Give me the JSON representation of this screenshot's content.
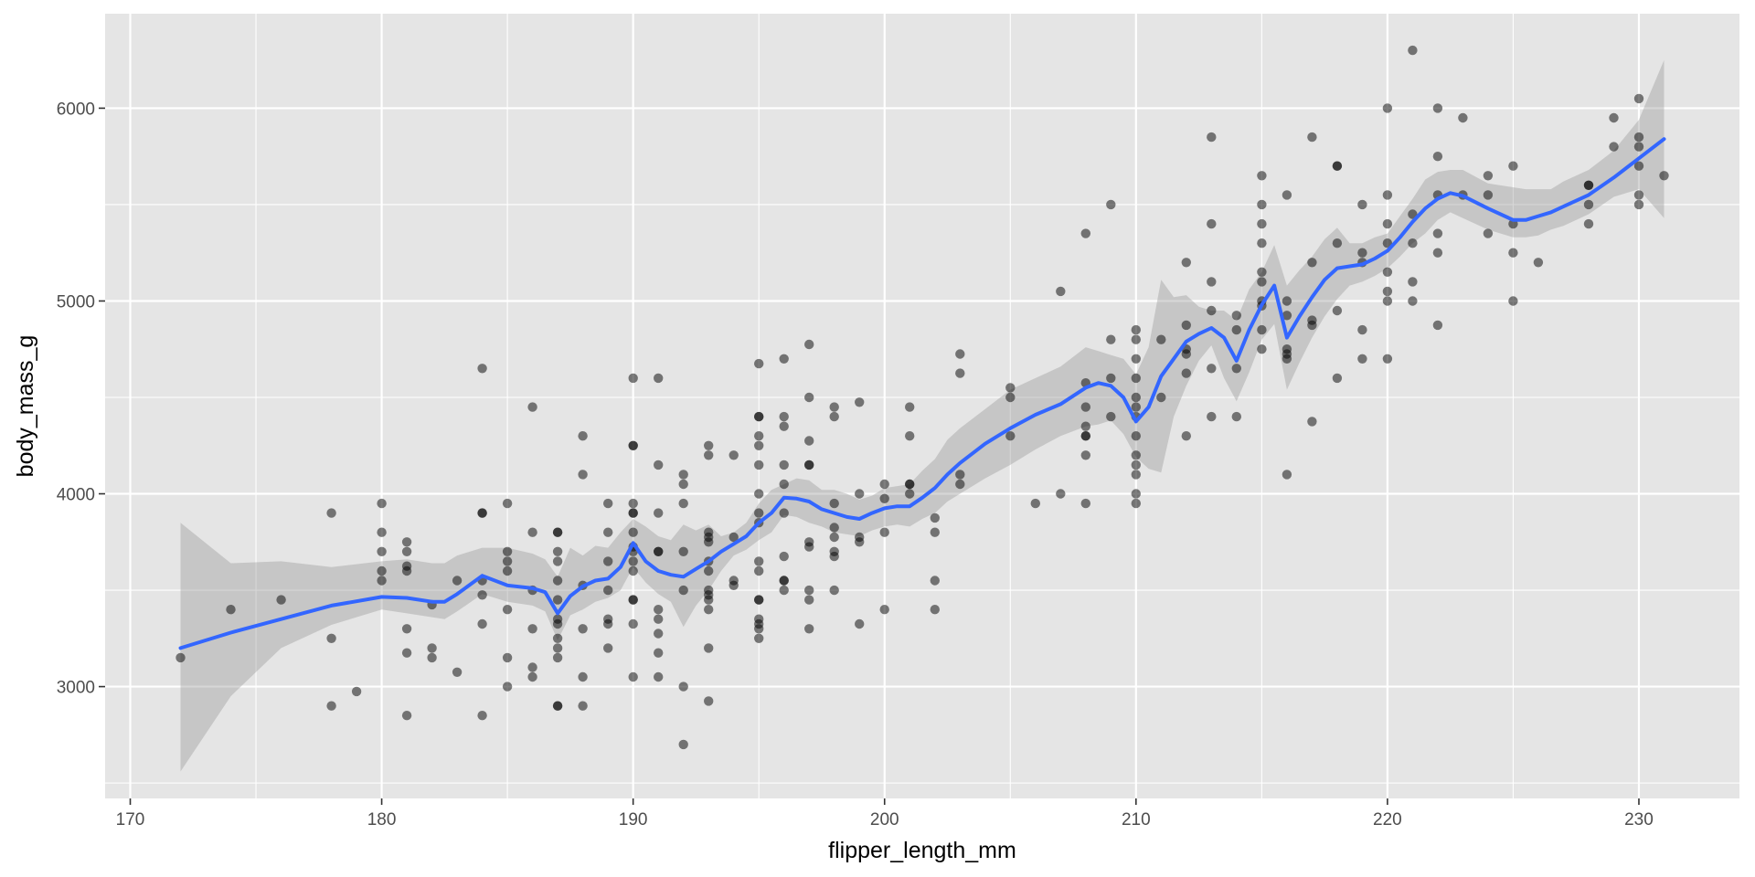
{
  "chart_data": {
    "type": "scatter",
    "title": "",
    "xlabel": "flipper_length_mm",
    "ylabel": "body_mass_g",
    "xlim": [
      169,
      234
    ],
    "ylim": [
      2420,
      6490
    ],
    "x_ticks": [
      170,
      180,
      190,
      200,
      210,
      220,
      230
    ],
    "y_ticks": [
      3000,
      4000,
      5000,
      6000
    ],
    "grid": true,
    "legend": "none",
    "colors": {
      "panel": "#e5e5e5",
      "grid": "#ffffff",
      "points": "#000000",
      "smooth_line": "#3366ff",
      "ribbon": "#b3b3b3"
    },
    "points": [
      [
        172,
        3150
      ],
      [
        174,
        3400
      ],
      [
        176,
        3450
      ],
      [
        178,
        3250
      ],
      [
        178,
        3900
      ],
      [
        178,
        2900
      ],
      [
        179,
        2975
      ],
      [
        180,
        3950
      ],
      [
        180,
        3800
      ],
      [
        180,
        3700
      ],
      [
        180,
        3550
      ],
      [
        180,
        3600
      ],
      [
        181,
        3750
      ],
      [
        181,
        3700
      ],
      [
        181,
        3625
      ],
      [
        181,
        3600
      ],
      [
        181,
        3300
      ],
      [
        181,
        3175
      ],
      [
        181,
        2850
      ],
      [
        182,
        3425
      ],
      [
        182,
        3200
      ],
      [
        182,
        3150
      ],
      [
        183,
        3550
      ],
      [
        183,
        3075
      ],
      [
        184,
        4650
      ],
      [
        184,
        3900
      ],
      [
        184,
        3900
      ],
      [
        184,
        3550
      ],
      [
        184,
        3475
      ],
      [
        184,
        3325
      ],
      [
        184,
        2850
      ],
      [
        185,
        3950
      ],
      [
        185,
        3700
      ],
      [
        185,
        3650
      ],
      [
        185,
        3600
      ],
      [
        185,
        3400
      ],
      [
        185,
        3150
      ],
      [
        185,
        3000
      ],
      [
        186,
        4450
      ],
      [
        186,
        3800
      ],
      [
        186,
        3500
      ],
      [
        186,
        3300
      ],
      [
        186,
        3100
      ],
      [
        186,
        3050
      ],
      [
        187,
        3800
      ],
      [
        187,
        3800
      ],
      [
        187,
        3700
      ],
      [
        187,
        3650
      ],
      [
        187,
        3550
      ],
      [
        187,
        3450
      ],
      [
        187,
        3350
      ],
      [
        187,
        3325
      ],
      [
        187,
        3250
      ],
      [
        187,
        3200
      ],
      [
        187,
        3150
      ],
      [
        187,
        2900
      ],
      [
        187,
        2900
      ],
      [
        188,
        4300
      ],
      [
        188,
        4100
      ],
      [
        188,
        3525
      ],
      [
        188,
        3300
      ],
      [
        188,
        3050
      ],
      [
        188,
        2900
      ],
      [
        189,
        3950
      ],
      [
        189,
        3800
      ],
      [
        189,
        3650
      ],
      [
        189,
        3500
      ],
      [
        189,
        3350
      ],
      [
        189,
        3325
      ],
      [
        189,
        3200
      ],
      [
        190,
        4600
      ],
      [
        190,
        4250
      ],
      [
        190,
        4250
      ],
      [
        190,
        3950
      ],
      [
        190,
        3900
      ],
      [
        190,
        3900
      ],
      [
        190,
        3800
      ],
      [
        190,
        3725
      ],
      [
        190,
        3700
      ],
      [
        190,
        3650
      ],
      [
        190,
        3600
      ],
      [
        190,
        3450
      ],
      [
        190,
        3450
      ],
      [
        190,
        3325
      ],
      [
        190,
        3050
      ],
      [
        191,
        4600
      ],
      [
        191,
        4150
      ],
      [
        191,
        3900
      ],
      [
        191,
        3700
      ],
      [
        191,
        3700
      ],
      [
        191,
        3400
      ],
      [
        191,
        3350
      ],
      [
        191,
        3275
      ],
      [
        191,
        3175
      ],
      [
        191,
        3050
      ],
      [
        192,
        4100
      ],
      [
        192,
        4050
      ],
      [
        192,
        3950
      ],
      [
        192,
        3700
      ],
      [
        192,
        3500
      ],
      [
        192,
        3000
      ],
      [
        192,
        2700
      ],
      [
        193,
        4250
      ],
      [
        193,
        4200
      ],
      [
        193,
        3800
      ],
      [
        193,
        3775
      ],
      [
        193,
        3750
      ],
      [
        193,
        3650
      ],
      [
        193,
        3600
      ],
      [
        193,
        3500
      ],
      [
        193,
        3475
      ],
      [
        193,
        3450
      ],
      [
        193,
        3400
      ],
      [
        193,
        3200
      ],
      [
        193,
        2925
      ],
      [
        194,
        4200
      ],
      [
        194,
        3775
      ],
      [
        194,
        3550
      ],
      [
        194,
        3525
      ],
      [
        195,
        4675
      ],
      [
        195,
        4400
      ],
      [
        195,
        4400
      ],
      [
        195,
        4300
      ],
      [
        195,
        4250
      ],
      [
        195,
        4150
      ],
      [
        195,
        4000
      ],
      [
        195,
        3900
      ],
      [
        195,
        3850
      ],
      [
        195,
        3650
      ],
      [
        195,
        3600
      ],
      [
        195,
        3450
      ],
      [
        195,
        3450
      ],
      [
        195,
        3350
      ],
      [
        195,
        3325
      ],
      [
        195,
        3300
      ],
      [
        195,
        3250
      ],
      [
        196,
        4700
      ],
      [
        196,
        4400
      ],
      [
        196,
        4350
      ],
      [
        196,
        4150
      ],
      [
        196,
        4050
      ],
      [
        196,
        3900
      ],
      [
        196,
        3675
      ],
      [
        196,
        3550
      ],
      [
        196,
        3550
      ],
      [
        196,
        3500
      ],
      [
        197,
        4775
      ],
      [
        197,
        4500
      ],
      [
        197,
        4275
      ],
      [
        197,
        4150
      ],
      [
        197,
        4150
      ],
      [
        197,
        3750
      ],
      [
        197,
        3725
      ],
      [
        197,
        3500
      ],
      [
        197,
        3450
      ],
      [
        197,
        3300
      ],
      [
        198,
        4450
      ],
      [
        198,
        4400
      ],
      [
        198,
        3950
      ],
      [
        198,
        3825
      ],
      [
        198,
        3775
      ],
      [
        198,
        3700
      ],
      [
        198,
        3675
      ],
      [
        198,
        3500
      ],
      [
        199,
        4475
      ],
      [
        199,
        4000
      ],
      [
        199,
        3775
      ],
      [
        199,
        3750
      ],
      [
        199,
        3325
      ],
      [
        200,
        4050
      ],
      [
        200,
        3975
      ],
      [
        200,
        3800
      ],
      [
        200,
        3400
      ],
      [
        201,
        4450
      ],
      [
        201,
        4300
      ],
      [
        201,
        4050
      ],
      [
        201,
        4000
      ],
      [
        201,
        4050
      ],
      [
        202,
        3875
      ],
      [
        202,
        3800
      ],
      [
        202,
        3550
      ],
      [
        202,
        3400
      ],
      [
        203,
        4725
      ],
      [
        203,
        4625
      ],
      [
        203,
        4100
      ],
      [
        203,
        4050
      ],
      [
        205,
        4550
      ],
      [
        205,
        4500
      ],
      [
        205,
        4300
      ],
      [
        206,
        3950
      ],
      [
        207,
        5050
      ],
      [
        207,
        4000
      ],
      [
        208,
        5350
      ],
      [
        208,
        4575
      ],
      [
        208,
        4450
      ],
      [
        208,
        4350
      ],
      [
        208,
        4300
      ],
      [
        208,
        4300
      ],
      [
        208,
        4200
      ],
      [
        208,
        3950
      ],
      [
        209,
        5500
      ],
      [
        209,
        4800
      ],
      [
        209,
        4600
      ],
      [
        209,
        4400
      ],
      [
        210,
        4850
      ],
      [
        210,
        4800
      ],
      [
        210,
        4700
      ],
      [
        210,
        4600
      ],
      [
        210,
        4500
      ],
      [
        210,
        4450
      ],
      [
        210,
        4400
      ],
      [
        210,
        4300
      ],
      [
        210,
        4200
      ],
      [
        210,
        4150
      ],
      [
        210,
        4100
      ],
      [
        210,
        4000
      ],
      [
        210,
        3950
      ],
      [
        211,
        4800
      ],
      [
        211,
        4500
      ],
      [
        212,
        5200
      ],
      [
        212,
        4875
      ],
      [
        212,
        4750
      ],
      [
        212,
        4725
      ],
      [
        212,
        4625
      ],
      [
        212,
        4300
      ],
      [
        213,
        5850
      ],
      [
        213,
        5400
      ],
      [
        213,
        5100
      ],
      [
        213,
        4950
      ],
      [
        213,
        4650
      ],
      [
        213,
        4400
      ],
      [
        214,
        4925
      ],
      [
        214,
        4850
      ],
      [
        214,
        4650
      ],
      [
        214,
        4400
      ],
      [
        215,
        5650
      ],
      [
        215,
        5500
      ],
      [
        215,
        5400
      ],
      [
        215,
        5300
      ],
      [
        215,
        5150
      ],
      [
        215,
        5100
      ],
      [
        215,
        5000
      ],
      [
        215,
        4975
      ],
      [
        215,
        4850
      ],
      [
        215,
        4750
      ],
      [
        216,
        5550
      ],
      [
        216,
        5000
      ],
      [
        216,
        4925
      ],
      [
        216,
        4750
      ],
      [
        216,
        4725
      ],
      [
        216,
        4700
      ],
      [
        216,
        4100
      ],
      [
        217,
        5850
      ],
      [
        217,
        5200
      ],
      [
        217,
        4900
      ],
      [
        217,
        4875
      ],
      [
        217,
        4375
      ],
      [
        218,
        5700
      ],
      [
        218,
        5700
      ],
      [
        218,
        5300
      ],
      [
        218,
        4950
      ],
      [
        218,
        4600
      ],
      [
        219,
        5500
      ],
      [
        219,
        5250
      ],
      [
        219,
        5200
      ],
      [
        219,
        4850
      ],
      [
        219,
        4700
      ],
      [
        220,
        6000
      ],
      [
        220,
        5550
      ],
      [
        220,
        5400
      ],
      [
        220,
        5300
      ],
      [
        220,
        5150
      ],
      [
        220,
        5050
      ],
      [
        220,
        5000
      ],
      [
        220,
        4700
      ],
      [
        221,
        6300
      ],
      [
        221,
        5450
      ],
      [
        221,
        5300
      ],
      [
        221,
        5100
      ],
      [
        221,
        5000
      ],
      [
        222,
        6000
      ],
      [
        222,
        5750
      ],
      [
        222,
        5550
      ],
      [
        222,
        5350
      ],
      [
        222,
        5250
      ],
      [
        222,
        4875
      ],
      [
        223,
        5950
      ],
      [
        223,
        5550
      ],
      [
        224,
        5650
      ],
      [
        224,
        5550
      ],
      [
        224,
        5350
      ],
      [
        225,
        5700
      ],
      [
        225,
        5400
      ],
      [
        225,
        5250
      ],
      [
        225,
        5000
      ],
      [
        226,
        5200
      ],
      [
        228,
        5600
      ],
      [
        228,
        5600
      ],
      [
        228,
        5500
      ],
      [
        228,
        5400
      ],
      [
        229,
        5950
      ],
      [
        229,
        5800
      ],
      [
        230,
        6050
      ],
      [
        230,
        5850
      ],
      [
        230,
        5800
      ],
      [
        230,
        5700
      ],
      [
        230,
        5550
      ],
      [
        230,
        5500
      ],
      [
        231,
        5650
      ]
    ],
    "smooth": {
      "x": [
        172,
        174,
        176,
        178,
        180,
        181,
        182,
        182.5,
        183,
        184,
        185,
        186,
        186.5,
        187,
        187.5,
        188,
        188.5,
        189,
        189.5,
        190,
        190.5,
        191,
        191.5,
        192,
        192.5,
        193,
        193.5,
        194,
        194.5,
        195,
        195.5,
        196,
        196.5,
        197,
        197.5,
        198,
        198.5,
        199,
        199.5,
        200,
        200.5,
        201,
        201.5,
        202,
        202.5,
        203,
        204,
        205,
        206,
        207,
        208,
        208.5,
        209,
        209.5,
        210,
        210.5,
        211,
        211.5,
        212,
        212.5,
        213,
        213.5,
        214,
        214.5,
        215,
        215.5,
        216,
        216.5,
        217,
        217.5,
        218,
        218.5,
        219,
        219.5,
        220,
        220.5,
        221,
        221.5,
        222,
        222.5,
        223,
        224,
        225,
        225.5,
        226,
        226.5,
        227,
        228,
        229,
        230,
        231
      ],
      "y": [
        3200,
        3280,
        3350,
        3420,
        3465,
        3460,
        3440,
        3440,
        3480,
        3575,
        3525,
        3510,
        3490,
        3380,
        3470,
        3520,
        3550,
        3560,
        3620,
        3745,
        3650,
        3600,
        3580,
        3570,
        3610,
        3650,
        3700,
        3740,
        3780,
        3850,
        3900,
        3980,
        3975,
        3960,
        3920,
        3900,
        3880,
        3870,
        3900,
        3925,
        3935,
        3935,
        3980,
        4030,
        4100,
        4160,
        4260,
        4340,
        4410,
        4465,
        4550,
        4575,
        4560,
        4500,
        4375,
        4450,
        4610,
        4700,
        4790,
        4830,
        4860,
        4810,
        4690,
        4850,
        4980,
        5080,
        4810,
        4920,
        5020,
        5110,
        5170,
        5180,
        5190,
        5220,
        5260,
        5330,
        5410,
        5480,
        5530,
        5560,
        5545,
        5480,
        5420,
        5420,
        5440,
        5460,
        5490,
        5550,
        5640,
        5740,
        5840
      ],
      "lower": [
        2560,
        2950,
        3200,
        3320,
        3400,
        3380,
        3360,
        3350,
        3390,
        3480,
        3440,
        3420,
        3390,
        3240,
        3370,
        3400,
        3440,
        3460,
        3500,
        3620,
        3540,
        3480,
        3440,
        3310,
        3420,
        3500,
        3600,
        3680,
        3710,
        3760,
        3800,
        3890,
        3880,
        3850,
        3830,
        3800,
        3790,
        3780,
        3810,
        3830,
        3840,
        3830,
        3870,
        3900,
        3960,
        4000,
        4080,
        4150,
        4230,
        4300,
        4350,
        4360,
        4380,
        4310,
        4190,
        4130,
        4110,
        4400,
        4560,
        4690,
        4770,
        4600,
        4480,
        4630,
        4800,
        4880,
        4540,
        4680,
        4810,
        4920,
        5010,
        5080,
        5100,
        5130,
        5170,
        5230,
        5300,
        5350,
        5420,
        5460,
        5430,
        5370,
        5330,
        5330,
        5340,
        5370,
        5390,
        5450,
        5540,
        5580,
        5430
      ],
      "upper": [
        3850,
        3640,
        3650,
        3620,
        3650,
        3660,
        3640,
        3640,
        3680,
        3720,
        3720,
        3690,
        3660,
        3570,
        3720,
        3680,
        3730,
        3720,
        3800,
        3870,
        3830,
        3780,
        3760,
        3840,
        3810,
        3840,
        3780,
        3800,
        3850,
        3950,
        4020,
        4050,
        4080,
        4070,
        4020,
        4020,
        4000,
        3970,
        3990,
        4030,
        4040,
        4050,
        4120,
        4180,
        4280,
        4340,
        4440,
        4540,
        4600,
        4660,
        4760,
        4740,
        4720,
        4700,
        4620,
        4760,
        5110,
        5020,
        5030,
        4970,
        4950,
        4950,
        4900,
        5060,
        5150,
        5290,
        5080,
        5160,
        5230,
        5320,
        5380,
        5300,
        5300,
        5330,
        5350,
        5440,
        5530,
        5630,
        5670,
        5680,
        5680,
        5610,
        5590,
        5580,
        5580,
        5580,
        5620,
        5680,
        5780,
        5940,
        6250
      ]
    }
  }
}
